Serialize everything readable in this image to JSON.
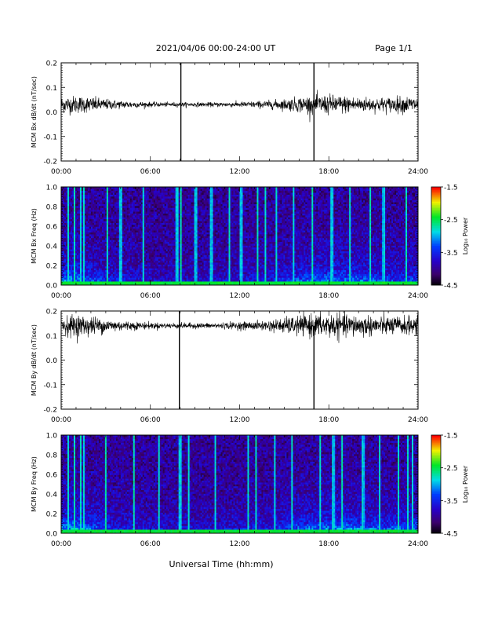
{
  "header": {
    "title": "2021/04/06  00:00-24:00 UT",
    "page": "Page 1/1"
  },
  "footer": {
    "xlabel": "Universal Time (hh:mm)"
  },
  "chart_data": [
    {
      "type": "line",
      "name": "panel-bx-dbdt",
      "ylabel": "MCM Bx dB/dt (nT/sec)",
      "xlim": [
        0,
        24
      ],
      "ylim": [
        -0.2,
        0.2
      ],
      "x_ticks": [
        "00:00",
        "06:00",
        "12:00",
        "18:00",
        "24:00"
      ],
      "y_ticks": [
        "-0.2",
        "-0.1",
        "0.0",
        "0.1",
        "0.2"
      ],
      "y_tick_values": [
        -0.2,
        -0.1,
        0.0,
        0.1,
        0.2
      ],
      "baseline": 0.03,
      "amplitude_hourly": [
        0.03,
        0.032,
        0.028,
        0.02,
        0.015,
        0.012,
        0.009,
        0.008,
        0.008,
        0.008,
        0.008,
        0.009,
        0.01,
        0.012,
        0.015,
        0.02,
        0.028,
        0.034,
        0.036,
        0.032,
        0.028,
        0.026,
        0.027,
        0.03,
        0.03
      ],
      "spikes": [
        {
          "x": 8.05,
          "y_min": -0.2,
          "y_max": 0.2
        },
        {
          "x": 17.0,
          "y_min": -0.2,
          "y_max": 0.2
        }
      ]
    },
    {
      "type": "heatmap",
      "name": "panel-bx-spectrogram",
      "ylabel": "MCM Bx Freq (Hz)",
      "xlim": [
        0,
        24
      ],
      "ylim": [
        0,
        1.0
      ],
      "x_ticks": [
        "00:00",
        "06:00",
        "12:00",
        "18:00",
        "24:00"
      ],
      "y_ticks": [
        "0.0",
        "0.2",
        "0.4",
        "0.6",
        "0.8",
        "1.0"
      ],
      "y_tick_values": [
        0.0,
        0.2,
        0.4,
        0.6,
        0.8,
        1.0
      ],
      "colorbar": {
        "label": "Log₁₀ Power",
        "range": [
          -4.5,
          -1.5
        ],
        "ticks": [
          "-1.5",
          "-2.5",
          "-3.5",
          "-4.5"
        ],
        "tick_values": [
          -1.5,
          -2.5,
          -3.5,
          -4.5
        ]
      },
      "activity_hourly": [
        0.75,
        0.8,
        0.6,
        0.45,
        0.35,
        0.3,
        0.25,
        0.22,
        0.22,
        0.22,
        0.22,
        0.25,
        0.28,
        0.32,
        0.38,
        0.48,
        0.6,
        0.68,
        0.72,
        0.7,
        0.68,
        0.6,
        0.55,
        0.55,
        0.55
      ],
      "broadband_bursts": [
        0.45,
        0.9,
        1.35,
        1.5,
        3.1,
        4.0,
        5.5,
        7.8,
        8.05,
        9.05,
        10.1,
        11.3,
        12.1,
        13.2,
        13.75,
        14.5,
        15.6,
        16.9,
        18.2,
        19.4,
        20.8,
        21.7,
        23.2
      ]
    },
    {
      "type": "line",
      "name": "panel-by-dbdt",
      "ylabel": "MCM By dB/dt (nT/sec)",
      "xlim": [
        0,
        24
      ],
      "ylim": [
        -0.2,
        0.2
      ],
      "x_ticks": [
        "00:00",
        "06:00",
        "12:00",
        "18:00",
        "24:00"
      ],
      "y_ticks": [
        "-0.2",
        "-0.1",
        "0.0",
        "0.1",
        "0.2"
      ],
      "y_tick_values": [
        -0.2,
        -0.1,
        0.0,
        0.1,
        0.2
      ],
      "baseline": 0.14,
      "amplitude_hourly": [
        0.035,
        0.04,
        0.035,
        0.025,
        0.02,
        0.015,
        0.012,
        0.01,
        0.01,
        0.01,
        0.01,
        0.012,
        0.014,
        0.016,
        0.02,
        0.028,
        0.036,
        0.042,
        0.045,
        0.042,
        0.04,
        0.036,
        0.034,
        0.034,
        0.034
      ],
      "spikes": [
        {
          "x": 7.95,
          "y_min": -0.2,
          "y_max": 0.2
        },
        {
          "x": 17.0,
          "y_min": -0.2,
          "y_max": 0.14
        }
      ]
    },
    {
      "type": "heatmap",
      "name": "panel-by-spectrogram",
      "ylabel": "MCM By Freq (Hz)",
      "xlim": [
        0,
        24
      ],
      "ylim": [
        0,
        1.0
      ],
      "x_ticks": [
        "00:00",
        "06:00",
        "12:00",
        "18:00",
        "24:00"
      ],
      "y_ticks": [
        "0.0",
        "0.2",
        "0.4",
        "0.6",
        "0.8",
        "1.0"
      ],
      "y_tick_values": [
        0.0,
        0.2,
        0.4,
        0.6,
        0.8,
        1.0
      ],
      "colorbar": {
        "label": "Log₁₀ Power",
        "range": [
          -4.5,
          -1.5
        ],
        "ticks": [
          "-1.5",
          "-2.5",
          "-3.5",
          "-4.5"
        ],
        "tick_values": [
          -1.5,
          -2.5,
          -3.5,
          -4.5
        ]
      },
      "activity_hourly": [
        0.8,
        0.85,
        0.65,
        0.5,
        0.4,
        0.35,
        0.3,
        0.28,
        0.28,
        0.28,
        0.28,
        0.3,
        0.32,
        0.36,
        0.42,
        0.52,
        0.62,
        0.7,
        0.75,
        0.75,
        0.72,
        0.66,
        0.62,
        0.62,
        0.62
      ],
      "broadband_bursts": [
        0.5,
        0.9,
        1.3,
        1.5,
        3.0,
        4.9,
        6.6,
        8.0,
        8.6,
        10.4,
        12.6,
        13.1,
        14.4,
        15.5,
        17.4,
        18.3,
        18.9,
        20.3,
        21.4,
        22.7,
        23.3,
        23.6
      ]
    }
  ]
}
